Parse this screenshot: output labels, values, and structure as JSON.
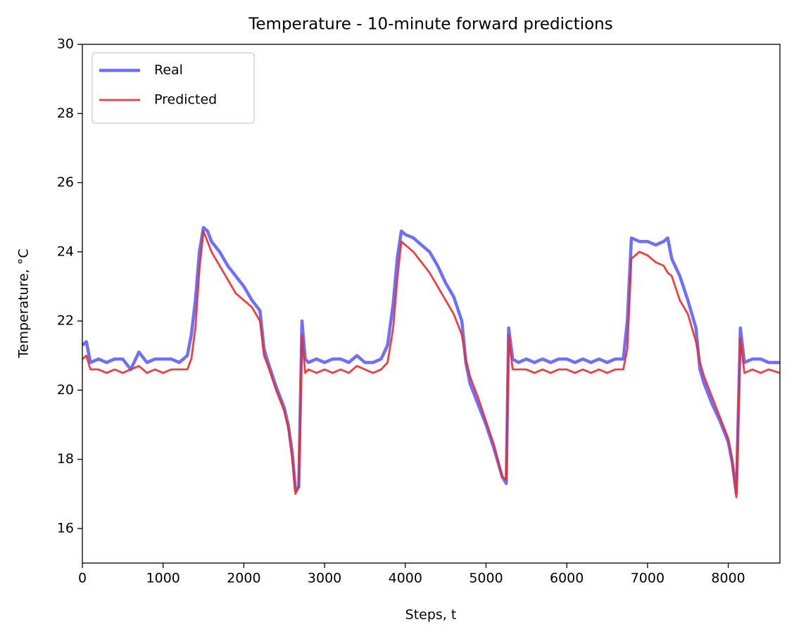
{
  "chart_data": {
    "type": "line",
    "title": "Temperature - 10-minute forward predictions",
    "xlabel": "Steps, t",
    "ylabel": "Temperature, °C",
    "x": [
      0,
      50,
      100,
      200,
      300,
      400,
      500,
      600,
      700,
      800,
      900,
      1000,
      1100,
      1200,
      1300,
      1350,
      1400,
      1450,
      1500,
      1550,
      1600,
      1700,
      1800,
      1900,
      2000,
      2100,
      2200,
      2250,
      2300,
      2400,
      2500,
      2550,
      2600,
      2640,
      2680,
      2720,
      2760,
      2800,
      2900,
      3000,
      3100,
      3200,
      3300,
      3400,
      3500,
      3600,
      3700,
      3780,
      3850,
      3900,
      3950,
      4000,
      4100,
      4200,
      4300,
      4400,
      4500,
      4600,
      4700,
      4750,
      4800,
      4900,
      5000,
      5100,
      5200,
      5250,
      5280,
      5330,
      5400,
      5500,
      5600,
      5700,
      5800,
      5900,
      6000,
      6100,
      6200,
      6300,
      6400,
      6500,
      6600,
      6700,
      6750,
      6800,
      6900,
      7000,
      7100,
      7200,
      7250,
      7300,
      7400,
      7500,
      7600,
      7650,
      7700,
      7800,
      7900,
      8000,
      8050,
      8100,
      8150,
      8200,
      8300,
      8400,
      8500,
      8640
    ],
    "series": [
      {
        "name": "Real",
        "color": "#6666ff",
        "values": [
          21.3,
          21.4,
          20.8,
          20.9,
          20.8,
          20.9,
          20.9,
          20.6,
          21.1,
          20.8,
          20.9,
          20.9,
          20.9,
          20.8,
          21.0,
          21.6,
          22.6,
          24.0,
          24.7,
          24.6,
          24.3,
          24.0,
          23.6,
          23.3,
          23.0,
          22.6,
          22.3,
          21.2,
          20.8,
          20.1,
          19.5,
          19.0,
          18.2,
          17.1,
          17.2,
          22.0,
          20.9,
          20.8,
          20.9,
          20.8,
          20.9,
          20.9,
          20.8,
          21.0,
          20.8,
          20.8,
          20.9,
          21.3,
          22.5,
          23.8,
          24.6,
          24.5,
          24.4,
          24.2,
          24.0,
          23.6,
          23.1,
          22.7,
          22.0,
          20.8,
          20.2,
          19.6,
          19.0,
          18.3,
          17.5,
          17.3,
          21.8,
          20.9,
          20.8,
          20.9,
          20.8,
          20.9,
          20.8,
          20.9,
          20.9,
          20.8,
          20.9,
          20.8,
          20.9,
          20.8,
          20.9,
          20.9,
          22.0,
          24.4,
          24.3,
          24.3,
          24.2,
          24.3,
          24.4,
          23.8,
          23.3,
          22.6,
          21.8,
          20.6,
          20.2,
          19.6,
          19.1,
          18.5,
          17.9,
          17.0,
          21.8,
          20.8,
          20.9,
          20.9,
          20.8,
          20.8
        ]
      },
      {
        "name": "Predicted",
        "color": "#ee2a2a",
        "values": [
          20.9,
          21.0,
          20.6,
          20.6,
          20.5,
          20.6,
          20.5,
          20.6,
          20.7,
          20.5,
          20.6,
          20.5,
          20.6,
          20.6,
          20.6,
          20.9,
          21.8,
          23.5,
          24.6,
          24.3,
          24.0,
          23.6,
          23.2,
          22.8,
          22.6,
          22.4,
          22.0,
          21.0,
          20.7,
          20.0,
          19.4,
          18.9,
          18.0,
          17.0,
          17.2,
          21.6,
          20.5,
          20.6,
          20.5,
          20.6,
          20.5,
          20.6,
          20.5,
          20.7,
          20.6,
          20.5,
          20.6,
          20.8,
          21.8,
          23.2,
          24.3,
          24.2,
          24.0,
          23.7,
          23.4,
          23.0,
          22.6,
          22.2,
          21.6,
          20.9,
          20.4,
          19.8,
          19.1,
          18.4,
          17.5,
          17.4,
          21.6,
          20.6,
          20.6,
          20.6,
          20.5,
          20.6,
          20.5,
          20.6,
          20.6,
          20.5,
          20.6,
          20.5,
          20.6,
          20.5,
          20.6,
          20.6,
          21.2,
          23.8,
          24.0,
          23.9,
          23.7,
          23.6,
          23.4,
          23.3,
          22.6,
          22.2,
          21.4,
          20.8,
          20.4,
          19.8,
          19.2,
          18.6,
          18.0,
          16.9,
          21.5,
          20.5,
          20.6,
          20.5,
          20.6,
          20.5
        ]
      }
    ],
    "xlim": [
      0,
      8640
    ],
    "ylim": [
      15,
      30
    ],
    "xticks": [
      0,
      1000,
      2000,
      3000,
      4000,
      5000,
      6000,
      7000,
      8000
    ],
    "yticks": [
      16,
      18,
      20,
      22,
      24,
      26,
      28,
      30
    ],
    "legend": "upper left"
  }
}
